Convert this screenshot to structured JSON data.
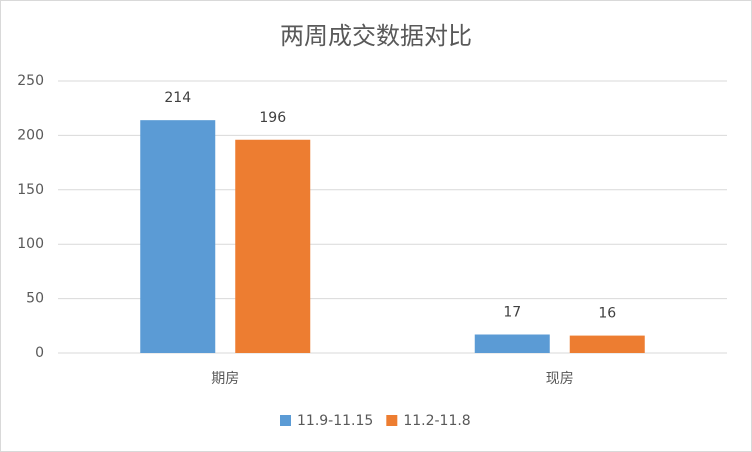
{
  "chart_data": {
    "type": "bar",
    "title": "两周成交数据对比",
    "categories": [
      "期房",
      "现房"
    ],
    "series": [
      {
        "name": "11.9-11.15",
        "color": "#5b9bd5",
        "values": [
          214,
          17
        ]
      },
      {
        "name": "11.2-11.8",
        "color": "#ed7d31",
        "values": [
          196,
          16
        ]
      }
    ],
    "ylim": [
      0,
      250
    ],
    "yticks": [
      0,
      50,
      100,
      150,
      200,
      250
    ],
    "grid": true,
    "legend": "bottom"
  }
}
